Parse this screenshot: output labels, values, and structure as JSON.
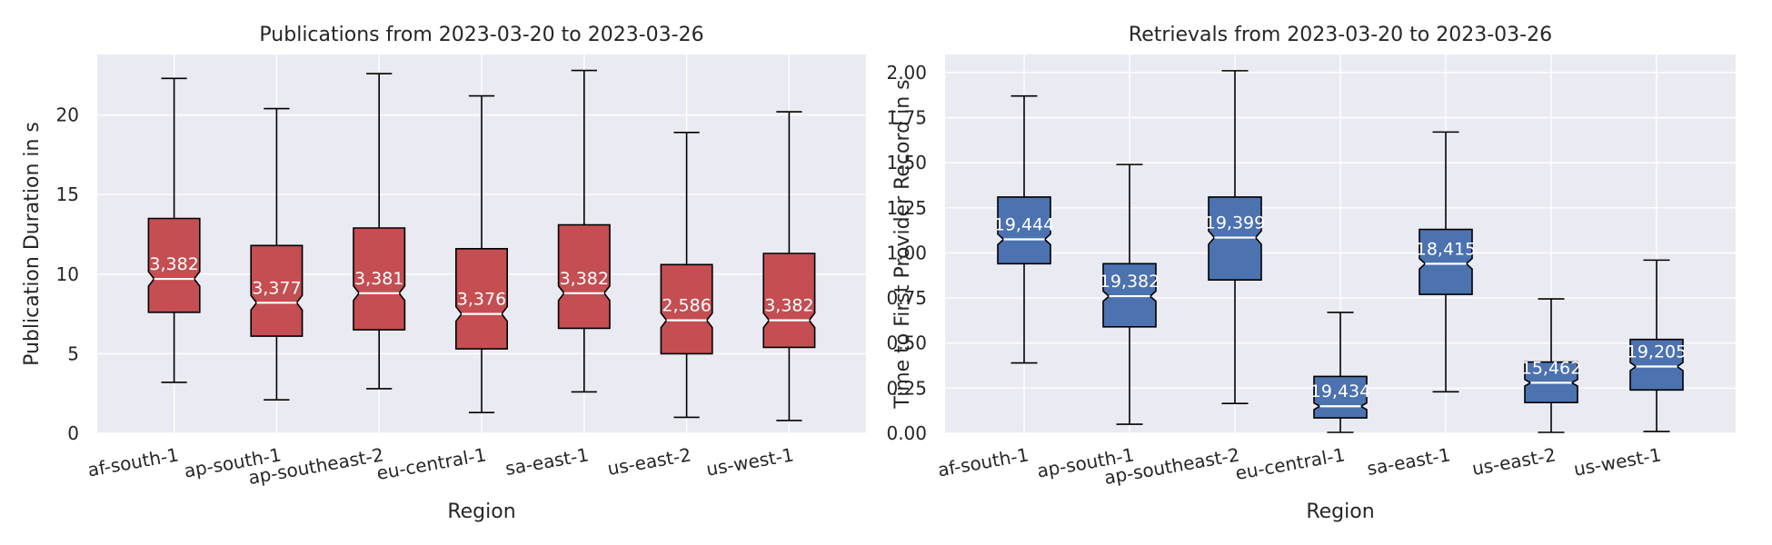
{
  "chart_data": [
    {
      "type": "box",
      "title": "Publications from 2023-03-20 to 2023-03-26",
      "xlabel": "Region",
      "ylabel": "Publication Duration in s",
      "ylim": [
        0,
        23.8
      ],
      "yticks": [
        0,
        5,
        10,
        15,
        20
      ],
      "ytick_labels": [
        "0",
        "5",
        "10",
        "15",
        "20"
      ],
      "grid": true,
      "notched": true,
      "color": "#c44e52",
      "categories": [
        "af-south-1",
        "ap-south-1",
        "ap-southeast-2",
        "eu-central-1",
        "sa-east-1",
        "us-east-2",
        "us-west-1"
      ],
      "boxes": [
        {
          "whisker_low": 3.2,
          "q1": 7.6,
          "median": 9.7,
          "q3": 13.5,
          "whisker_high": 22.3,
          "count_label": "3,382"
        },
        {
          "whisker_low": 2.1,
          "q1": 6.1,
          "median": 8.2,
          "q3": 11.8,
          "whisker_high": 20.4,
          "count_label": "3,377"
        },
        {
          "whisker_low": 2.8,
          "q1": 6.5,
          "median": 8.8,
          "q3": 12.9,
          "whisker_high": 22.6,
          "count_label": "3,381"
        },
        {
          "whisker_low": 1.3,
          "q1": 5.3,
          "median": 7.5,
          "q3": 11.6,
          "whisker_high": 21.2,
          "count_label": "3,376"
        },
        {
          "whisker_low": 2.6,
          "q1": 6.6,
          "median": 8.8,
          "q3": 13.1,
          "whisker_high": 22.8,
          "count_label": "3,382"
        },
        {
          "whisker_low": 1.0,
          "q1": 5.0,
          "median": 7.1,
          "q3": 10.6,
          "whisker_high": 18.9,
          "count_label": "2,586"
        },
        {
          "whisker_low": 0.8,
          "q1": 5.4,
          "median": 7.1,
          "q3": 11.3,
          "whisker_high": 20.2,
          "count_label": "3,382"
        }
      ]
    },
    {
      "type": "box",
      "title": "Retrievals from 2023-03-20 to 2023-03-26",
      "xlabel": "Region",
      "ylabel": "Time to First Provider Record in s",
      "ylim": [
        0,
        2.1
      ],
      "yticks": [
        0,
        0.25,
        0.5,
        0.75,
        1.0,
        1.25,
        1.5,
        1.75,
        2.0
      ],
      "ytick_labels": [
        "0.00",
        "0.25",
        "0.50",
        "0.75",
        "1.00",
        "1.25",
        "1.50",
        "1.75",
        "2.00"
      ],
      "grid": true,
      "notched": true,
      "color": "#4c72b0",
      "categories": [
        "af-south-1",
        "ap-south-1",
        "ap-southeast-2",
        "eu-central-1",
        "sa-east-1",
        "us-east-2",
        "us-west-1"
      ],
      "boxes": [
        {
          "whisker_low": 0.39,
          "q1": 0.94,
          "median": 1.075,
          "q3": 1.31,
          "whisker_high": 1.87,
          "count_label": "19,444"
        },
        {
          "whisker_low": 0.05,
          "q1": 0.59,
          "median": 0.76,
          "q3": 0.94,
          "whisker_high": 1.49,
          "count_label": "19,382"
        },
        {
          "whisker_low": 0.165,
          "q1": 0.85,
          "median": 1.085,
          "q3": 1.31,
          "whisker_high": 2.01,
          "count_label": "19,399"
        },
        {
          "whisker_low": 0.005,
          "q1": 0.085,
          "median": 0.15,
          "q3": 0.315,
          "whisker_high": 0.67,
          "count_label": "19,434"
        },
        {
          "whisker_low": 0.23,
          "q1": 0.77,
          "median": 0.94,
          "q3": 1.13,
          "whisker_high": 1.67,
          "count_label": "18,415"
        },
        {
          "whisker_low": 0.005,
          "q1": 0.17,
          "median": 0.28,
          "q3": 0.395,
          "whisker_high": 0.745,
          "count_label": "15,462"
        },
        {
          "whisker_low": 0.01,
          "q1": 0.24,
          "median": 0.37,
          "q3": 0.52,
          "whisker_high": 0.96,
          "count_label": "19,205"
        }
      ]
    }
  ]
}
